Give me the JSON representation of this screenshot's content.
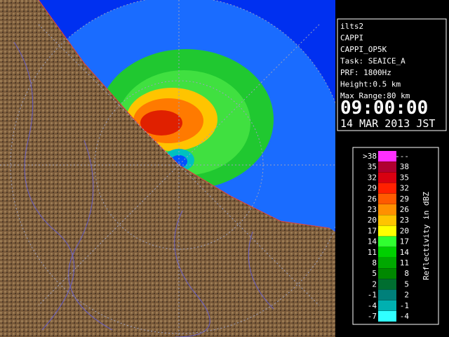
{
  "info": {
    "lines": [
      "ilts2",
      "CAPPI",
      "CAPPI_OP5K",
      "Task: SEAICE_A",
      "PRF: 1800Hz",
      "Height:0.5 km",
      "Max Range:80 km"
    ],
    "time": "09:00:00",
    "date": "14 MAR 2013 JST"
  },
  "legend": {
    "title": "Reflectivity in dBZ",
    "rows": [
      {
        "low": ">38",
        "high": "---",
        "color": "#ff30ff"
      },
      {
        "low": "35",
        "high": "38",
        "color": "#b00030"
      },
      {
        "low": "32",
        "high": "35",
        "color": "#d80010"
      },
      {
        "low": "29",
        "high": "32",
        "color": "#ff2000"
      },
      {
        "low": "26",
        "high": "29",
        "color": "#ff5a00"
      },
      {
        "low": "23",
        "high": "26",
        "color": "#ff9000"
      },
      {
        "low": "20",
        "high": "23",
        "color": "#ffc400"
      },
      {
        "low": "17",
        "high": "20",
        "color": "#ffff00"
      },
      {
        "low": "14",
        "high": "17",
        "color": "#30ff30"
      },
      {
        "low": "11",
        "high": "14",
        "color": "#00d000"
      },
      {
        "low": "8",
        "high": "11",
        "color": "#00a800"
      },
      {
        "low": "5",
        "high": "8",
        "color": "#008800"
      },
      {
        "low": "2",
        "high": "5",
        "color": "#006e30"
      },
      {
        "low": "-1",
        "high": "2",
        "color": "#00807a"
      },
      {
        "low": "-4",
        "high": "-1",
        "color": "#00b0b0"
      },
      {
        "low": "-7",
        "high": "-4",
        "color": "#30ffff"
      }
    ]
  }
}
